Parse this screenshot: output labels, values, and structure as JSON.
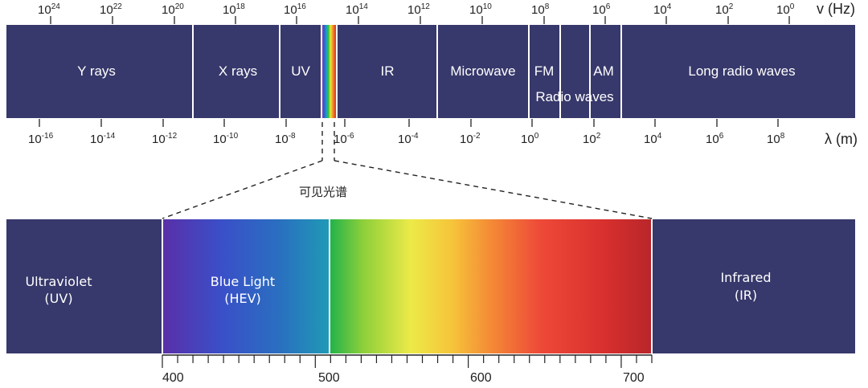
{
  "frequency_axis": {
    "unit_label": "v (Hz)",
    "ticks": [
      {
        "base": "10",
        "exp": "24"
      },
      {
        "base": "10",
        "exp": "22"
      },
      {
        "base": "10",
        "exp": "20"
      },
      {
        "base": "10",
        "exp": "18"
      },
      {
        "base": "10",
        "exp": "16"
      },
      {
        "base": "10",
        "exp": "14"
      },
      {
        "base": "10",
        "exp": "12"
      },
      {
        "base": "10",
        "exp": "10"
      },
      {
        "base": "10",
        "exp": "8"
      },
      {
        "base": "10",
        "exp": "6"
      },
      {
        "base": "10",
        "exp": "4"
      },
      {
        "base": "10",
        "exp": "2"
      },
      {
        "base": "10",
        "exp": "0"
      }
    ]
  },
  "wavelength_axis": {
    "unit_label": "λ (m)",
    "ticks": [
      {
        "base": "10",
        "exp": "-16"
      },
      {
        "base": "10",
        "exp": "-14"
      },
      {
        "base": "10",
        "exp": "-12"
      },
      {
        "base": "10",
        "exp": "-10"
      },
      {
        "base": "10",
        "exp": "-8"
      },
      {
        "base": "10",
        "exp": "-6"
      },
      {
        "base": "10",
        "exp": "-4"
      },
      {
        "base": "10",
        "exp": "-2"
      },
      {
        "base": "10",
        "exp": "0"
      },
      {
        "base": "10",
        "exp": "2"
      },
      {
        "base": "10",
        "exp": "4"
      },
      {
        "base": "10",
        "exp": "6"
      },
      {
        "base": "10",
        "exp": "8"
      }
    ]
  },
  "bands": {
    "gamma": "Y rays",
    "xray": "X rays",
    "uv": "UV",
    "ir": "IR",
    "microwave": "Microwave",
    "fm": "FM",
    "am": "AM",
    "radio_waves": "Radio waves",
    "long_radio": "Long radio waves"
  },
  "visible_spectrum_label": "可见光谱",
  "detail": {
    "ultraviolet": [
      "Ultraviolet",
      "(UV)"
    ],
    "blue_light": [
      "Blue Light",
      "(HEV)"
    ],
    "infrared": [
      "Infrared",
      "(IR)"
    ],
    "nm_ticks": [
      "400",
      "500",
      "600",
      "700"
    ]
  },
  "colors": {
    "band_fill": "#37386b",
    "divider": "#ffffff",
    "text": "#222222"
  }
}
